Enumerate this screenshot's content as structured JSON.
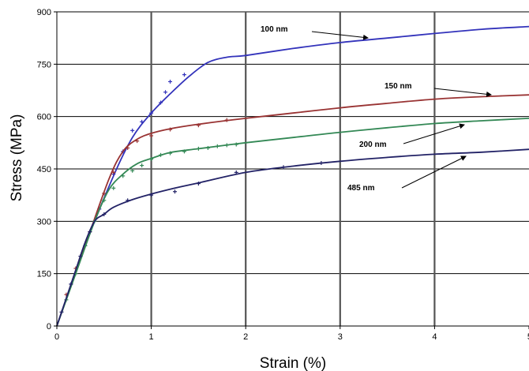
{
  "chart_data": {
    "type": "line",
    "title": "",
    "xlabel": "Strain (%)",
    "ylabel": "Stress (MPa)",
    "xlim": [
      0,
      5
    ],
    "ylim": [
      0,
      900
    ],
    "x_ticks": [
      0,
      1,
      2,
      3,
      4,
      5
    ],
    "x_tick_labels": [
      "0",
      "1",
      "2",
      "3",
      "4",
      "5"
    ],
    "y_ticks": [
      0,
      150,
      300,
      450,
      600,
      750,
      900
    ],
    "y_tick_labels": [
      "0",
      "150",
      "300",
      "450",
      "600",
      "750",
      "900"
    ],
    "grid": true,
    "legend": "annotations with arrows",
    "series": [
      {
        "name": "100 nm",
        "color": "#3333bb",
        "fit": [
          [
            0,
            0
          ],
          [
            0.3,
            230
          ],
          [
            0.6,
            430
          ],
          [
            0.8,
            540
          ],
          [
            1.0,
            610
          ],
          [
            1.2,
            665
          ],
          [
            1.4,
            715
          ],
          [
            1.6,
            755
          ],
          [
            1.8,
            770
          ],
          [
            2.0,
            775
          ],
          [
            2.5,
            795
          ],
          [
            3.0,
            812
          ],
          [
            3.5,
            825
          ],
          [
            4.0,
            838
          ],
          [
            4.5,
            850
          ],
          [
            5.0,
            858
          ]
        ],
        "points": [
          [
            0.15,
            120
          ],
          [
            0.3,
            230
          ],
          [
            0.45,
            335
          ],
          [
            0.6,
            435
          ],
          [
            0.7,
            500
          ],
          [
            0.8,
            560
          ],
          [
            0.9,
            585
          ],
          [
            1.0,
            610
          ],
          [
            1.1,
            640
          ],
          [
            1.15,
            670
          ],
          [
            1.2,
            700
          ],
          [
            1.35,
            720
          ]
        ]
      },
      {
        "name": "150 nm",
        "color": "#993333",
        "fit": [
          [
            0,
            0
          ],
          [
            0.3,
            230
          ],
          [
            0.55,
            420
          ],
          [
            0.7,
            500
          ],
          [
            0.85,
            535
          ],
          [
            1.0,
            552
          ],
          [
            1.2,
            565
          ],
          [
            1.5,
            578
          ],
          [
            2.0,
            595
          ],
          [
            2.5,
            610
          ],
          [
            3.0,
            625
          ],
          [
            3.5,
            638
          ],
          [
            4.0,
            650
          ],
          [
            4.5,
            657
          ],
          [
            5.0,
            662
          ]
        ],
        "points": [
          [
            0.1,
            90
          ],
          [
            0.2,
            165
          ],
          [
            0.35,
            270
          ],
          [
            0.5,
            380
          ],
          [
            0.6,
            440
          ],
          [
            0.75,
            510
          ],
          [
            0.85,
            530
          ],
          [
            1.0,
            545
          ],
          [
            1.2,
            563
          ],
          [
            1.5,
            575
          ],
          [
            1.8,
            590
          ]
        ]
      },
      {
        "name": "200 nm",
        "color": "#338855",
        "fit": [
          [
            0,
            0
          ],
          [
            0.2,
            150
          ],
          [
            0.4,
            300
          ],
          [
            0.55,
            390
          ],
          [
            0.7,
            435
          ],
          [
            0.85,
            465
          ],
          [
            1.0,
            480
          ],
          [
            1.2,
            497
          ],
          [
            1.5,
            508
          ],
          [
            2.0,
            525
          ],
          [
            2.5,
            540
          ],
          [
            3.0,
            555
          ],
          [
            3.5,
            568
          ],
          [
            4.0,
            580
          ],
          [
            4.5,
            588
          ],
          [
            5.0,
            595
          ]
        ],
        "points": [
          [
            0.1,
            75
          ],
          [
            0.2,
            150
          ],
          [
            0.3,
            230
          ],
          [
            0.4,
            300
          ],
          [
            0.5,
            360
          ],
          [
            0.6,
            395
          ],
          [
            0.7,
            430
          ],
          [
            0.8,
            445
          ],
          [
            0.9,
            460
          ],
          [
            1.0,
            478
          ],
          [
            1.1,
            490
          ],
          [
            1.2,
            495
          ],
          [
            1.35,
            500
          ],
          [
            1.5,
            508
          ],
          [
            1.6,
            510
          ],
          [
            1.7,
            515
          ],
          [
            1.8,
            518
          ],
          [
            1.9,
            520
          ]
        ]
      },
      {
        "name": "485 nm",
        "color": "#222266",
        "fit": [
          [
            0,
            0
          ],
          [
            0.1,
            80
          ],
          [
            0.2,
            160
          ],
          [
            0.3,
            240
          ],
          [
            0.4,
            300
          ],
          [
            0.5,
            320
          ],
          [
            0.6,
            340
          ],
          [
            0.8,
            362
          ],
          [
            1.0,
            378
          ],
          [
            1.25,
            395
          ],
          [
            1.5,
            410
          ],
          [
            2.0,
            440
          ],
          [
            2.5,
            458
          ],
          [
            3.0,
            472
          ],
          [
            3.5,
            483
          ],
          [
            4.0,
            492
          ],
          [
            4.5,
            498
          ],
          [
            5.0,
            506
          ]
        ],
        "points": [
          [
            0.05,
            40
          ],
          [
            0.15,
            120
          ],
          [
            0.25,
            200
          ],
          [
            0.35,
            270
          ],
          [
            0.5,
            320
          ],
          [
            0.75,
            360
          ],
          [
            1.0,
            375
          ],
          [
            1.25,
            385
          ],
          [
            1.5,
            408
          ],
          [
            1.9,
            440
          ],
          [
            2.4,
            455
          ],
          [
            2.8,
            467
          ]
        ]
      }
    ],
    "annotations": [
      {
        "text": "100 nm",
        "label_x": 0.25,
        "label_y": 833,
        "arrow_to": [
          3.3,
          833
        ],
        "label_pos": [
          330,
          40
        ],
        "arrow_from": [
          395,
          40
        ],
        "arrow_end": [
          466,
          48
        ]
      },
      {
        "text": "150 nm",
        "label_x": 0.0,
        "label_y": 0,
        "label_pos": [
          487,
          112
        ],
        "arrow_from": [
          550,
          112
        ],
        "arrow_end": [
          622,
          120
        ]
      },
      {
        "text": "200 nm",
        "label_x": 0.0,
        "label_y": 0,
        "label_pos": [
          455,
          186
        ],
        "arrow_from": [
          511,
          182
        ],
        "arrow_end": [
          588,
          158
        ]
      },
      {
        "text": "485 nm",
        "label_x": 0.0,
        "label_y": 0,
        "label_pos": [
          440,
          241
        ],
        "arrow_from": [
          509,
          238
        ],
        "arrow_end": [
          590,
          198
        ]
      }
    ]
  }
}
